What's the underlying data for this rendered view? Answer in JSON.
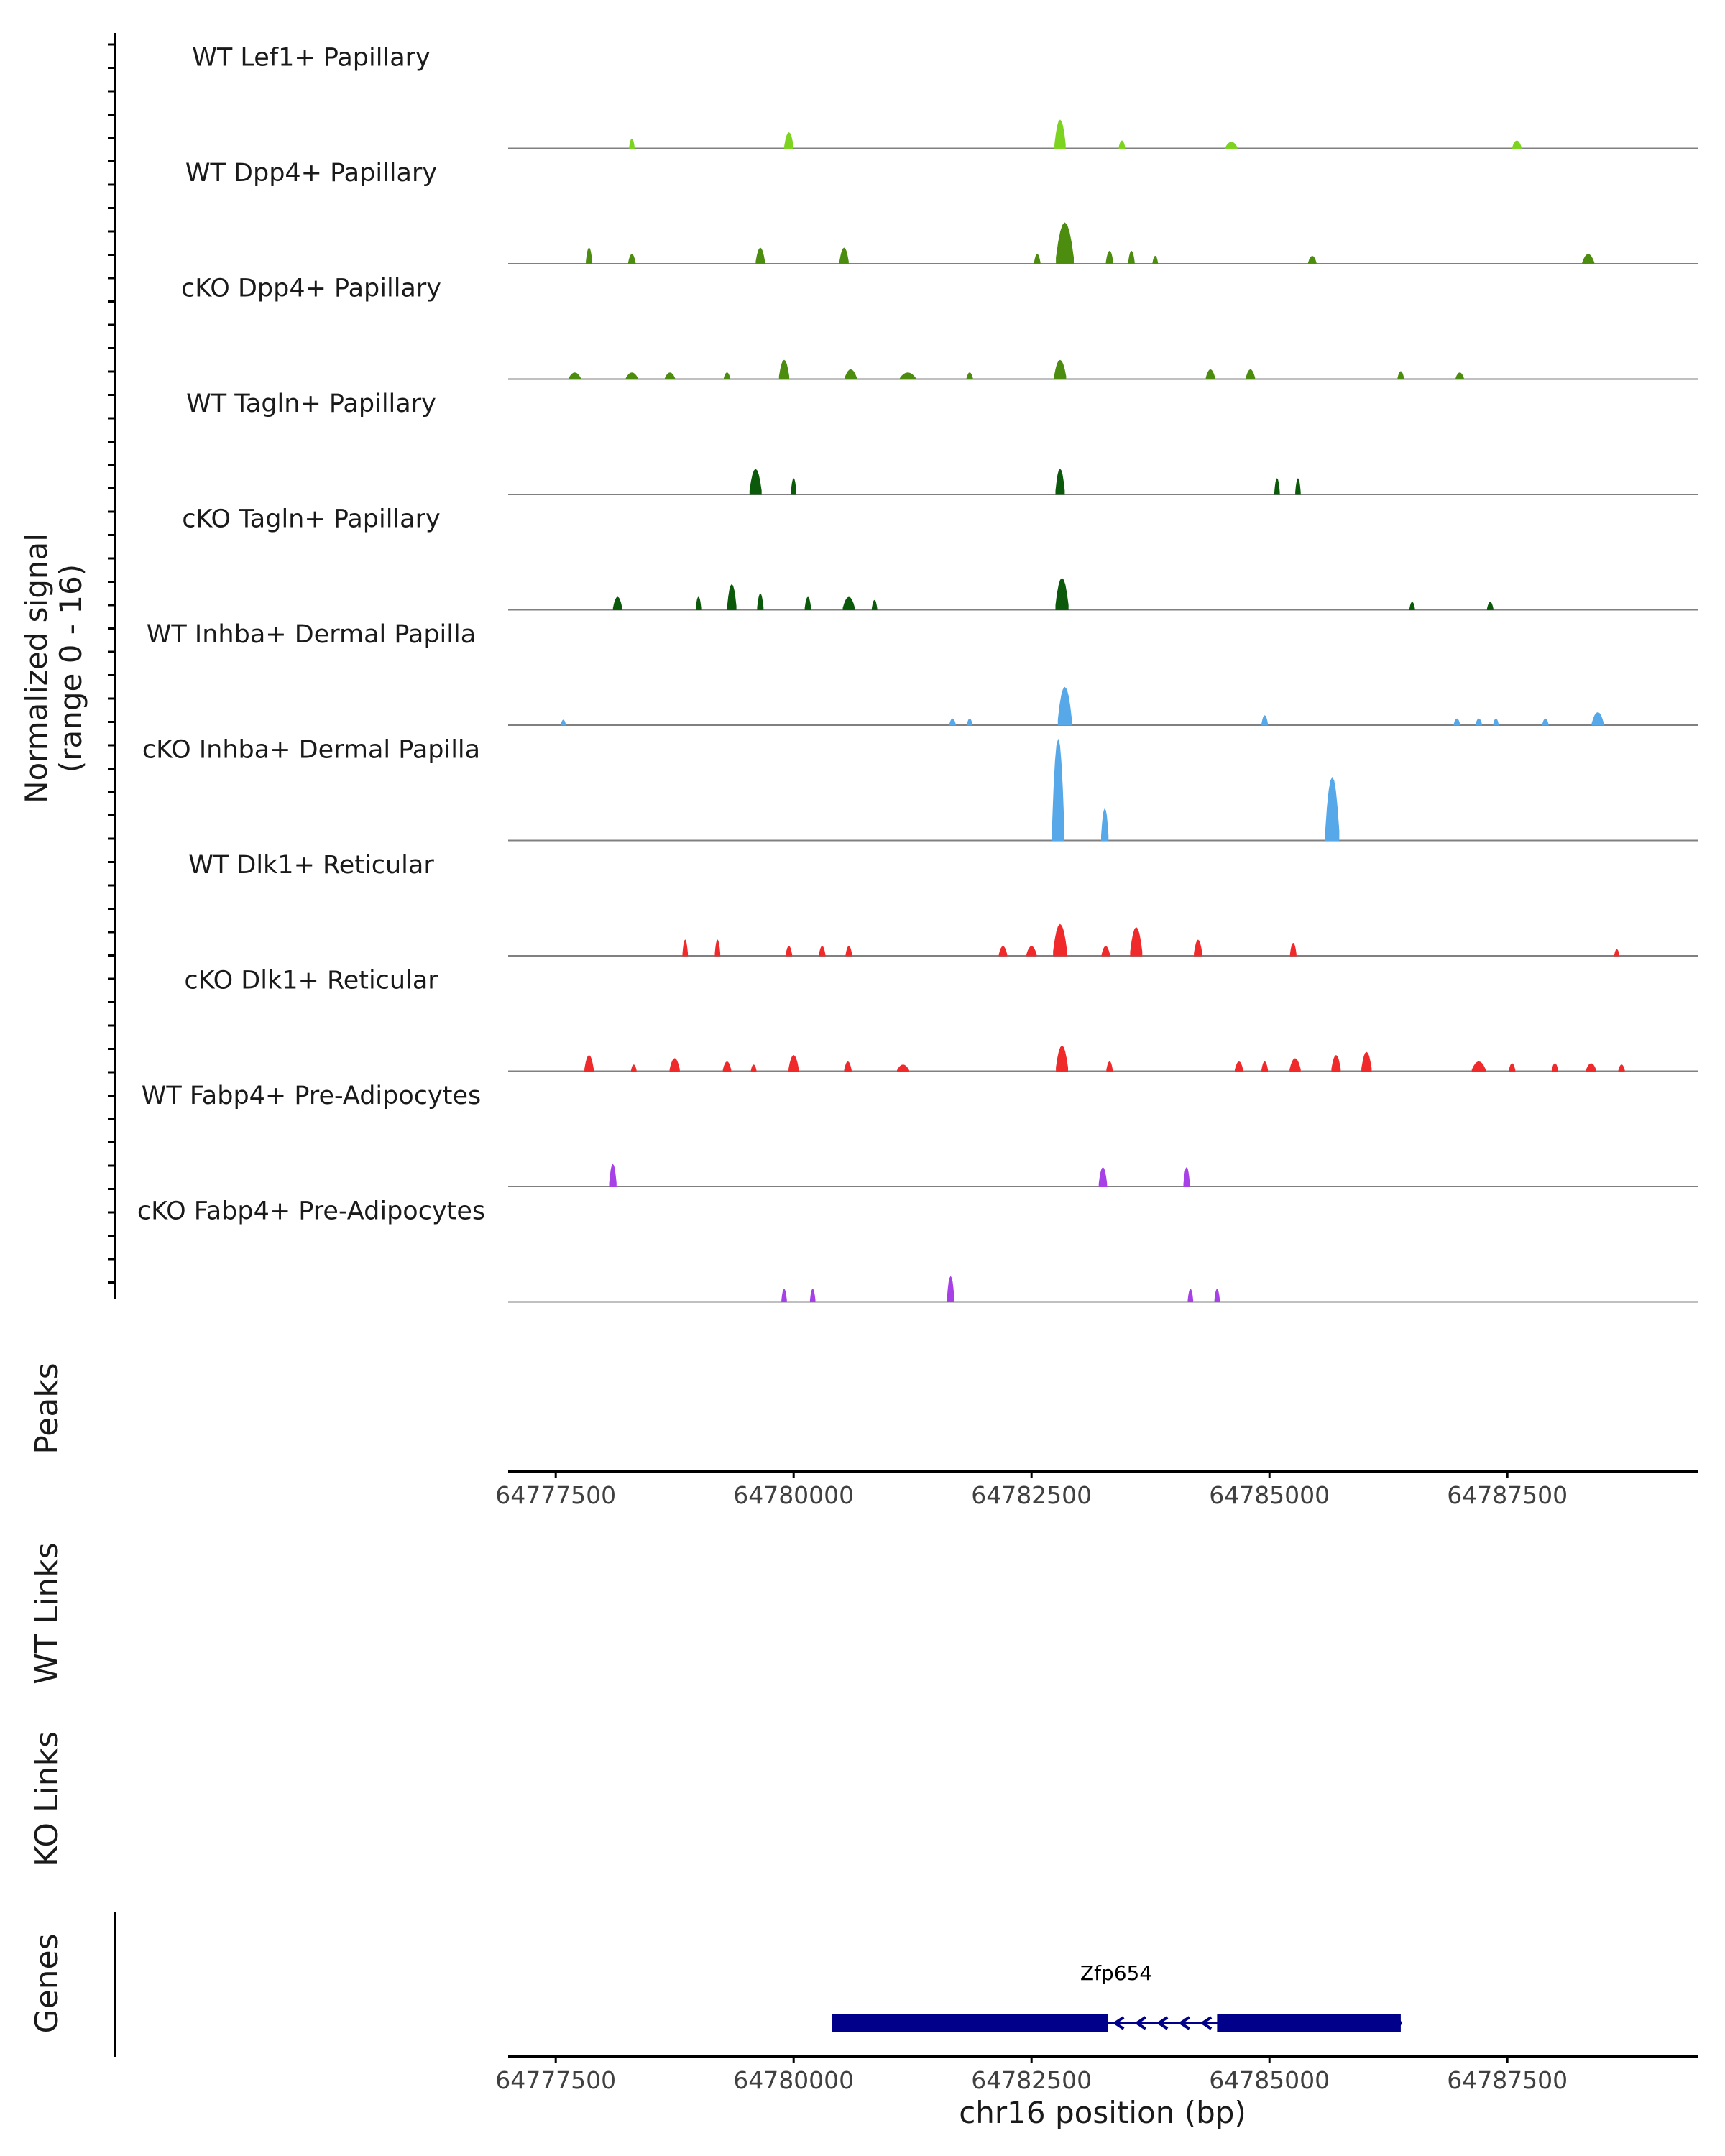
{
  "chart_data": {
    "type": "area",
    "title": "",
    "xlabel": "chr16 position (bp)",
    "ylabel": "Normalized signal\n(range 0 - 16)",
    "ylabel_lines": [
      "Normalized signal",
      "(range 0 - 16)"
    ],
    "xlim": [
      64777000,
      64789500
    ],
    "ylim": [
      0,
      16
    ],
    "x_ticks": [
      64777500,
      64780000,
      64782500,
      64785000,
      64787500
    ],
    "x_tick_labels": [
      "64777500",
      "64780000",
      "64782500",
      "64785000",
      "64787500"
    ],
    "panel_labels": {
      "peaks": "Peaks",
      "wt_links": "WT Links",
      "ko_links": "KO Links",
      "genes": "Genes"
    },
    "tracks": [
      {
        "name": "WT Lef1+ Papillary",
        "color": "#7CD320",
        "peaks": [
          [
            64778300,
            25,
            1.5
          ],
          [
            64779950,
            45,
            2.5
          ],
          [
            64782800,
            55,
            4.5
          ],
          [
            64783450,
            30,
            1.2
          ],
          [
            64784600,
            60,
            1
          ],
          [
            64787600,
            45,
            1.2
          ]
        ]
      },
      {
        "name": "WT Dpp4+ Papillary",
        "color": "#4C8C0F",
        "peaks": [
          [
            64777850,
            30,
            2.5
          ],
          [
            64778300,
            35,
            1.5
          ],
          [
            64779650,
            45,
            2.5
          ],
          [
            64780530,
            45,
            2.5
          ],
          [
            64782560,
            30,
            1.5
          ],
          [
            64782850,
            90,
            6.5
          ],
          [
            64783320,
            35,
            2
          ],
          [
            64783550,
            30,
            2
          ],
          [
            64783800,
            25,
            1.2
          ],
          [
            64785450,
            40,
            1.2
          ],
          [
            64788350,
            60,
            1.5
          ]
        ]
      },
      {
        "name": "cKO Dpp4+ Papillary",
        "color": "#4C8C0F",
        "peaks": [
          [
            64777700,
            60,
            1
          ],
          [
            64778300,
            60,
            1
          ],
          [
            64778700,
            50,
            1
          ],
          [
            64779300,
            30,
            1
          ],
          [
            64779900,
            50,
            3
          ],
          [
            64780600,
            60,
            1.5
          ],
          [
            64781200,
            80,
            1
          ],
          [
            64781850,
            30,
            1
          ],
          [
            64782800,
            60,
            3
          ],
          [
            64784380,
            45,
            1.5
          ],
          [
            64784800,
            45,
            1.5
          ],
          [
            64786380,
            30,
            1.2
          ],
          [
            64787000,
            40,
            1
          ]
        ]
      },
      {
        "name": "WT Tagln+ Papillary",
        "color": "#0B5A0B",
        "peaks": [
          [
            64779600,
            60,
            4
          ],
          [
            64780000,
            25,
            2.5
          ],
          [
            64782800,
            45,
            4
          ],
          [
            64785080,
            25,
            2.5
          ],
          [
            64785300,
            25,
            2.5
          ]
        ]
      },
      {
        "name": "cKO Tagln+ Papillary",
        "color": "#0B5A0B",
        "peaks": [
          [
            64778150,
            45,
            2
          ],
          [
            64779000,
            25,
            2
          ],
          [
            64779350,
            45,
            4
          ],
          [
            64779650,
            30,
            2.5
          ],
          [
            64780150,
            30,
            2
          ],
          [
            64780580,
            60,
            2
          ],
          [
            64780850,
            25,
            1.5
          ],
          [
            64782820,
            65,
            5
          ],
          [
            64786500,
            25,
            1.2
          ],
          [
            64787320,
            30,
            1.2
          ]
        ]
      },
      {
        "name": "WT Inhba+ Dermal Papilla",
        "color": "#56A8E8",
        "peaks": [
          [
            64777580,
            15,
            0.8
          ],
          [
            64781670,
            30,
            1
          ],
          [
            64781850,
            25,
            1
          ],
          [
            64782850,
            70,
            6
          ],
          [
            64784950,
            30,
            1.5
          ],
          [
            64786970,
            30,
            1
          ],
          [
            64787200,
            30,
            1
          ],
          [
            64787380,
            25,
            1
          ],
          [
            64787900,
            30,
            1
          ],
          [
            64788450,
            60,
            2
          ]
        ]
      },
      {
        "name": "cKO Inhba+ Dermal Papilla",
        "color": "#56A8E8",
        "peaks": [
          [
            64782780,
            60,
            16
          ],
          [
            64783270,
            35,
            5
          ],
          [
            64785660,
            70,
            10
          ]
        ]
      },
      {
        "name": "WT Dlk1+ Reticular",
        "color": "#F02A2A",
        "peaks": [
          [
            64778860,
            25,
            2.5
          ],
          [
            64779200,
            25,
            2.5
          ],
          [
            64779950,
            30,
            1.5
          ],
          [
            64780300,
            30,
            1.5
          ],
          [
            64780580,
            30,
            1.5
          ],
          [
            64782200,
            40,
            1.5
          ],
          [
            64782500,
            50,
            1.5
          ],
          [
            64782800,
            70,
            5
          ],
          [
            64783280,
            40,
            1.5
          ],
          [
            64783600,
            60,
            4.5
          ],
          [
            64784250,
            40,
            2.5
          ],
          [
            64785250,
            30,
            2
          ],
          [
            64788650,
            15,
            1
          ]
        ]
      },
      {
        "name": "cKO Dlk1+ Reticular",
        "color": "#F02A2A",
        "peaks": [
          [
            64777850,
            45,
            2.5
          ],
          [
            64778320,
            25,
            1
          ],
          [
            64778750,
            50,
            2
          ],
          [
            64779300,
            40,
            1.5
          ],
          [
            64779580,
            25,
            1
          ],
          [
            64780000,
            50,
            2.5
          ],
          [
            64780570,
            35,
            1.5
          ],
          [
            64781150,
            60,
            1
          ],
          [
            64782820,
            60,
            4
          ],
          [
            64783320,
            30,
            1.5
          ],
          [
            64784680,
            40,
            1.5
          ],
          [
            64784950,
            30,
            1.5
          ],
          [
            64785270,
            55,
            2
          ],
          [
            64785700,
            45,
            2.5
          ],
          [
            64786020,
            50,
            3
          ],
          [
            64787200,
            70,
            1.5
          ],
          [
            64787550,
            30,
            1.2
          ],
          [
            64788000,
            30,
            1.2
          ],
          [
            64788380,
            50,
            1.2
          ],
          [
            64788700,
            30,
            1
          ]
        ]
      },
      {
        "name": "WT Fabp4+ Pre-Adipocytes",
        "color": "#A840E8",
        "peaks": [
          [
            64778100,
            35,
            3.5
          ],
          [
            64783250,
            40,
            3
          ],
          [
            64784130,
            30,
            3
          ]
        ]
      },
      {
        "name": "cKO Fabp4+ Pre-Adipocytes",
        "color": "#A840E8",
        "peaks": [
          [
            64779900,
            25,
            2
          ],
          [
            64780200,
            25,
            2
          ],
          [
            64781650,
            35,
            4
          ],
          [
            64784170,
            25,
            2
          ],
          [
            64784450,
            25,
            2
          ]
        ]
      }
    ],
    "gene": {
      "name": "Zfp654",
      "strand": "-",
      "start": 64780400,
      "end": 64786380,
      "exons": [
        [
          64780400,
          64783300
        ],
        [
          64784450,
          64786380
        ]
      ]
    }
  }
}
